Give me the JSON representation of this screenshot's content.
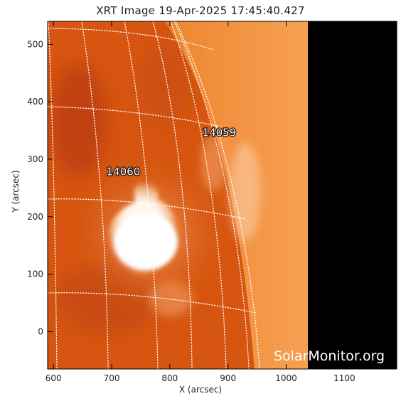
{
  "title": "XRT Image 19-Apr-2025 17:45:40.427",
  "xlabel": "X (arcsec)",
  "ylabel": "Y (arcsec)",
  "x_ticks": [
    "600",
    "700",
    "800",
    "900",
    "1000",
    "1100"
  ],
  "y_ticks": [
    "500",
    "400",
    "300",
    "200",
    "100",
    "0"
  ],
  "x_tick_values": [
    600,
    700,
    800,
    900,
    1000,
    1100
  ],
  "y_tick_values": [
    500,
    400,
    300,
    200,
    100,
    0
  ],
  "xlim": [
    590,
    1190
  ],
  "ylim": [
    -65,
    540
  ],
  "active_regions": [
    {
      "label": "14059",
      "x": 885,
      "y": 340
    },
    {
      "label": "14060",
      "x": 720,
      "y": 272
    }
  ],
  "watermark": "SolarMonitor.org",
  "colors": {
    "disk": "#d95a10",
    "disk_dark": "#b83a0a",
    "limb": "#f08a2a",
    "flare": "#ffffff",
    "background": "#000000",
    "grid": "#ffffff"
  }
}
